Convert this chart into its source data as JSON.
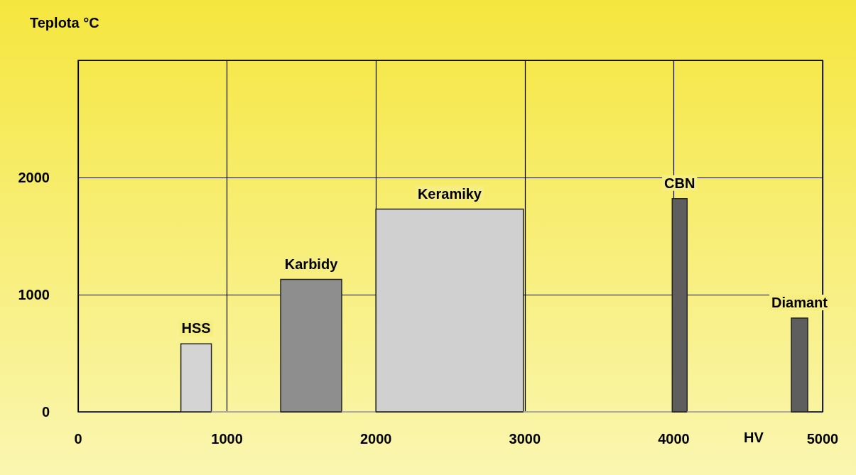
{
  "chart_data": {
    "type": "histogram",
    "xlabel": "HV",
    "ylabel": "Teplota °C",
    "bins": [
      690,
      895,
      1360,
      1770,
      2000,
      2990,
      3990,
      4090,
      4790,
      4900
    ],
    "values": [
      580,
      0,
      1130,
      0,
      1730,
      0,
      1820,
      0,
      800
    ],
    "colors": [
      "#d4d4d4",
      "#d4d4d4",
      "#8e8e8e",
      "#d4d4d4",
      "#d0d0d0",
      "#d4d4d4",
      "#5e5e5e",
      "#d4d4d4",
      "#5e5e5e"
    ],
    "xlim": [
      0,
      5000
    ],
    "xticks": [
      0,
      1000,
      2000,
      3000,
      4000,
      5000
    ],
    "ylim": [
      0,
      3000
    ],
    "yticks": [
      0,
      1000,
      2000,
      {
        "value": 3000,
        "label": null
      }
    ],
    "grid": true,
    "annotations": [
      {
        "text": "HSS",
        "x": 792.5,
        "y": 580
      },
      {
        "text": "Karbidy",
        "x": 1565,
        "y": 1130
      },
      {
        "text": "Keramiky",
        "x": 2495,
        "y": 1730
      },
      {
        "text": "CBN",
        "x": 4040,
        "y": 1820
      },
      {
        "text": "Diamant",
        "x": 4845,
        "y": 800
      }
    ]
  }
}
